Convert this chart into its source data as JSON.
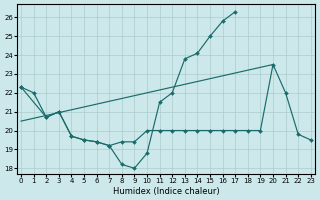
{
  "background_color": "#cce8ea",
  "grid_color": "#aacccc",
  "line_color": "#1a6b6b",
  "xlim": [
    -0.3,
    23.3
  ],
  "ylim": [
    17.7,
    26.7
  ],
  "yticks": [
    18,
    19,
    20,
    21,
    22,
    23,
    24,
    25,
    26
  ],
  "xticks": [
    0,
    1,
    2,
    3,
    4,
    5,
    6,
    7,
    8,
    9,
    10,
    11,
    12,
    13,
    14,
    15,
    16,
    17,
    18,
    19,
    20,
    21,
    22,
    23
  ],
  "xlabel": "Humidex (Indice chaleur)",
  "curve1_x": [
    0,
    1,
    2,
    3,
    4,
    5,
    6,
    7,
    8,
    9,
    10,
    11,
    12,
    13,
    14,
    15,
    16,
    17
  ],
  "curve1_y": [
    22.3,
    22.0,
    20.7,
    21.0,
    19.7,
    19.5,
    19.4,
    19.2,
    18.2,
    18.0,
    18.8,
    21.5,
    22.0,
    23.8,
    24.1,
    25.0,
    25.8,
    26.3
  ],
  "curve2_x": [
    0,
    2,
    3,
    4,
    5,
    6,
    7,
    8,
    9,
    10,
    11,
    12,
    13,
    14,
    15,
    16,
    17,
    18,
    19,
    20,
    21,
    22,
    23
  ],
  "curve2_y": [
    22.3,
    20.7,
    21.0,
    19.7,
    19.5,
    19.4,
    19.2,
    19.4,
    19.4,
    20.0,
    20.0,
    20.0,
    20.0,
    20.0,
    20.0,
    20.0,
    20.0,
    20.0,
    20.0,
    23.5,
    22.0,
    19.8,
    19.5
  ],
  "trend_x": [
    0,
    20
  ],
  "trend_y": [
    20.5,
    23.5
  ]
}
